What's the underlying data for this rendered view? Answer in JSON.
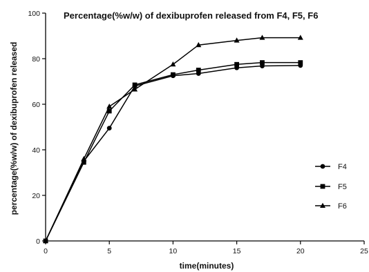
{
  "chart_data": {
    "type": "line",
    "title": "Percentage(%w/w) of dexibuprofen released from F4, F5, F6",
    "xlabel": "time(minutes)",
    "ylabel": "percentage(%w/w) of dexibuprofen released",
    "xlim": [
      0,
      25
    ],
    "ylim": [
      0,
      100
    ],
    "xticks": [
      0,
      5,
      10,
      15,
      20,
      25
    ],
    "yticks": [
      0,
      20,
      40,
      60,
      80,
      100
    ],
    "grid": false,
    "legend_position": "right",
    "series": [
      {
        "name": "F4",
        "marker": "circle",
        "points": [
          [
            0,
            0
          ],
          [
            3,
            35
          ],
          [
            5,
            49.5
          ],
          [
            7,
            68
          ],
          [
            10,
            72.5
          ],
          [
            12,
            73.5
          ],
          [
            15,
            76
          ],
          [
            17,
            76.8
          ],
          [
            20,
            77
          ]
        ]
      },
      {
        "name": "F5",
        "marker": "square",
        "points": [
          [
            0,
            0
          ],
          [
            3,
            34.5
          ],
          [
            5,
            57
          ],
          [
            7,
            68.5
          ],
          [
            10,
            73
          ],
          [
            12,
            75
          ],
          [
            15,
            77.5
          ],
          [
            17,
            78.3
          ],
          [
            20,
            78.3
          ]
        ]
      },
      {
        "name": "F6",
        "marker": "triangle",
        "points": [
          [
            0,
            0
          ],
          [
            3,
            36
          ],
          [
            5,
            59
          ],
          [
            7,
            66.5
          ],
          [
            10,
            77.5
          ],
          [
            12,
            86
          ],
          [
            15,
            88
          ],
          [
            17,
            89.2
          ],
          [
            20,
            89.2
          ]
        ]
      }
    ]
  }
}
